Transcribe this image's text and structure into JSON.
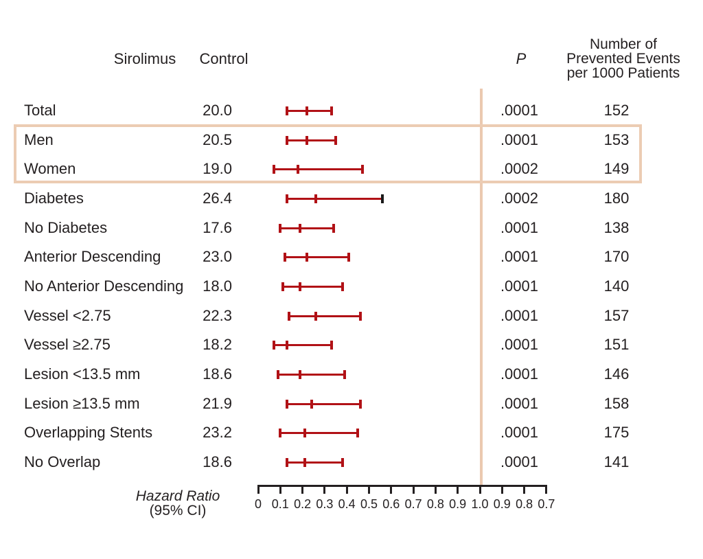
{
  "header": {
    "sirolimus": "Sirolimus",
    "control": "Control",
    "p": "P",
    "events_lines": [
      "Number of",
      "Prevented Events",
      "per 1000 Patients"
    ]
  },
  "axis": {
    "tick_labels": [
      "0",
      "0.1",
      "0.2",
      "0.3",
      "0.4",
      "0.5",
      "0.6",
      "0.7",
      "0.8",
      "0.9",
      "1.0",
      "0.9",
      "0.8",
      "0.7"
    ],
    "label_line1": "Hazard Ratio",
    "label_line2": "(95% CI)"
  },
  "rows": [
    {
      "label": "Total",
      "control": "20.0",
      "p": ".0001",
      "events": "152",
      "hr_low": 0.13,
      "hr_mid": 0.22,
      "hr_high": 0.33,
      "highlight": false,
      "black_high_cap": false
    },
    {
      "label": "Men",
      "control": "20.5",
      "p": ".0001",
      "events": "153",
      "hr_low": 0.13,
      "hr_mid": 0.22,
      "hr_high": 0.35,
      "highlight": true,
      "black_high_cap": false
    },
    {
      "label": "Women",
      "control": "19.0",
      "p": ".0002",
      "events": "149",
      "hr_low": 0.07,
      "hr_mid": 0.18,
      "hr_high": 0.47,
      "highlight": true,
      "black_high_cap": false
    },
    {
      "label": "Diabetes",
      "control": "26.4",
      "p": ".0002",
      "events": "180",
      "hr_low": 0.13,
      "hr_mid": 0.26,
      "hr_high": 0.56,
      "highlight": false,
      "black_high_cap": true
    },
    {
      "label": "No Diabetes",
      "control": "17.6",
      "p": ".0001",
      "events": "138",
      "hr_low": 0.1,
      "hr_mid": 0.19,
      "hr_high": 0.34,
      "highlight": false,
      "black_high_cap": false
    },
    {
      "label": "Anterior Descending",
      "control": "23.0",
      "p": ".0001",
      "events": "170",
      "hr_low": 0.12,
      "hr_mid": 0.22,
      "hr_high": 0.41,
      "highlight": false,
      "black_high_cap": false
    },
    {
      "label": "No Anterior Descending",
      "control": "18.0",
      "p": ".0001",
      "events": "140",
      "hr_low": 0.11,
      "hr_mid": 0.19,
      "hr_high": 0.38,
      "highlight": false,
      "black_high_cap": false
    },
    {
      "label": "Vessel <2.75",
      "control": "22.3",
      "p": ".0001",
      "events": "157",
      "hr_low": 0.14,
      "hr_mid": 0.26,
      "hr_high": 0.46,
      "highlight": false,
      "black_high_cap": false
    },
    {
      "label": "Vessel ≥2.75",
      "control": "18.2",
      "p": ".0001",
      "events": "151",
      "hr_low": 0.07,
      "hr_mid": 0.13,
      "hr_high": 0.33,
      "highlight": false,
      "black_high_cap": false
    },
    {
      "label": "Lesion <13.5 mm",
      "control": "18.6",
      "p": ".0001",
      "events": "146",
      "hr_low": 0.09,
      "hr_mid": 0.19,
      "hr_high": 0.39,
      "highlight": false,
      "black_high_cap": false
    },
    {
      "label": "Lesion ≥13.5 mm",
      "control": "21.9",
      "p": ".0001",
      "events": "158",
      "hr_low": 0.13,
      "hr_mid": 0.24,
      "hr_high": 0.46,
      "highlight": false,
      "black_high_cap": false
    },
    {
      "label": "Overlapping Stents",
      "control": "23.2",
      "p": ".0001",
      "events": "175",
      "hr_low": 0.1,
      "hr_mid": 0.21,
      "hr_high": 0.45,
      "highlight": false,
      "black_high_cap": false
    },
    {
      "label": "No Overlap",
      "control": "18.6",
      "p": ".0001",
      "events": "141",
      "hr_low": 0.13,
      "hr_mid": 0.21,
      "hr_high": 0.38,
      "highlight": false,
      "black_high_cap": false
    }
  ],
  "colors": {
    "bar_red": "#b11116",
    "black_cap": "#1a1a1a",
    "highlight_tan": "#ecccb3",
    "reference_tan": "#ebc9b0",
    "text": "#231f20"
  },
  "chart_data": {
    "type": "scatter",
    "subtype": "forest-plot",
    "title": "",
    "xlabel": "Hazard Ratio (95% CI)",
    "ylabel": "",
    "x_axis_tick_labels": [
      "0",
      "0.1",
      "0.2",
      "0.3",
      "0.4",
      "0.5",
      "0.6",
      "0.7",
      "0.8",
      "0.9",
      "1.0",
      "0.9",
      "0.8",
      "0.7"
    ],
    "x_axis_note": "linear scale 0 to 1.0 then mirrored labels 0.9, 0.8, 0.7; tan reference line at 1.0",
    "legend_position": "none",
    "grid": false,
    "categories": [
      "Total",
      "Men",
      "Women",
      "Diabetes",
      "No Diabetes",
      "Anterior Descending",
      "No Anterior Descending",
      "Vessel <2.75",
      "Vessel ≥2.75",
      "Lesion <13.5 mm",
      "Lesion ≥13.5 mm",
      "Overlapping Stents",
      "No Overlap"
    ],
    "series": [
      {
        "name": "hazard_ratio",
        "values": [
          0.22,
          0.22,
          0.18,
          0.26,
          0.19,
          0.22,
          0.19,
          0.26,
          0.13,
          0.19,
          0.24,
          0.21,
          0.21
        ]
      },
      {
        "name": "ci_lower",
        "values": [
          0.13,
          0.13,
          0.07,
          0.13,
          0.1,
          0.12,
          0.11,
          0.14,
          0.07,
          0.09,
          0.13,
          0.1,
          0.13
        ]
      },
      {
        "name": "ci_upper",
        "values": [
          0.33,
          0.35,
          0.47,
          0.56,
          0.34,
          0.41,
          0.38,
          0.46,
          0.33,
          0.39,
          0.46,
          0.45,
          0.38
        ]
      }
    ],
    "columns": {
      "control_rate": [
        20.0,
        20.5,
        19.0,
        26.4,
        17.6,
        23.0,
        18.0,
        22.3,
        18.2,
        18.6,
        21.9,
        23.2,
        18.6
      ],
      "p_value": [
        ".0001",
        ".0001",
        ".0002",
        ".0002",
        ".0001",
        ".0001",
        ".0001",
        ".0001",
        ".0001",
        ".0001",
        ".0001",
        ".0001",
        ".0001"
      ],
      "prevented_events_per_1000": [
        152,
        153,
        149,
        180,
        138,
        170,
        140,
        157,
        151,
        146,
        158,
        175,
        141
      ]
    },
    "annotations": [
      "Men and Women rows outlined with tan highlight box",
      "Diabetes upper CI cap drawn in black"
    ]
  }
}
